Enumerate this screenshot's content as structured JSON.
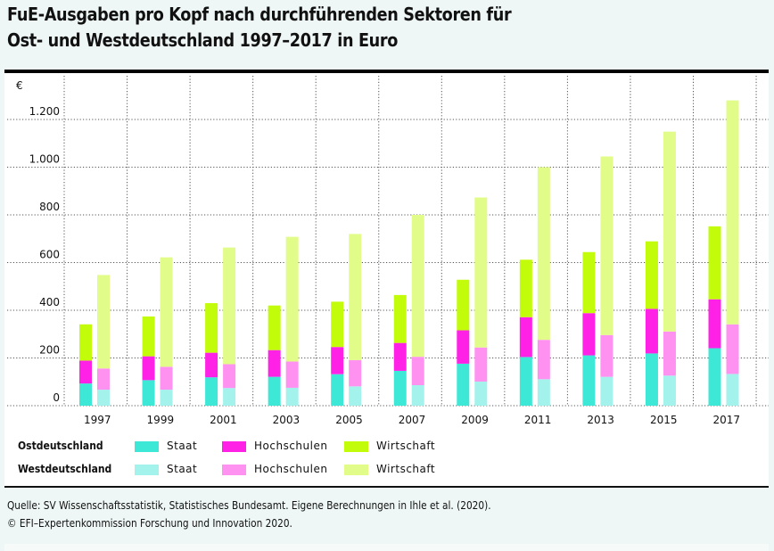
{
  "title_lines": [
    "FuE-Ausgaben pro Kopf nach durchführenden Sektoren für",
    "Ost- und Westdeutschland 1997–2017 in Euro"
  ],
  "chart_data": {
    "type": "bar",
    "stacked": true,
    "grouped": true,
    "title": "FuE-Ausgaben pro Kopf nach durchführenden Sektoren für Ost- und Westdeutschland 1997–2017 in Euro",
    "xlabel": "",
    "ylabel": "€",
    "ylim": [
      0,
      1300
    ],
    "yticks": [
      0,
      200,
      400,
      600,
      800,
      1000,
      1200
    ],
    "ytick_labels": [
      "0",
      "200",
      "400",
      "600",
      "800",
      "1.000",
      "1.200"
    ],
    "grid": true,
    "categories": [
      "1997",
      "1999",
      "2001",
      "2003",
      "2005",
      "2007",
      "2009",
      "2011",
      "2013",
      "2015",
      "2017"
    ],
    "groups": [
      {
        "name": "Ostdeutschland",
        "series": [
          {
            "name": "Staat",
            "color": "#3de8d6",
            "values": [
              93,
              107,
              119,
              121,
              132,
              146,
              176,
              204,
              211,
              219,
              241
            ]
          },
          {
            "name": "Hochschulen",
            "color": "#ff22e6",
            "values": [
              96,
              100,
              103,
              112,
              114,
              117,
              140,
              167,
              177,
              187,
              205
            ]
          },
          {
            "name": "Wirtschaft",
            "color": "#c2fc0a",
            "values": [
              152,
              167,
              208,
              187,
              190,
              201,
              212,
              241,
              256,
              283,
              306
            ]
          }
        ],
        "totals": [
          341,
          374,
          430,
          420,
          436,
          464,
          528,
          612,
          644,
          689,
          752
        ]
      },
      {
        "name": "Westdeutschland",
        "series": [
          {
            "name": "Staat",
            "color": "#a3f2ec",
            "values": [
              67,
              67,
              74,
              75,
              81,
              86,
              101,
              111,
              121,
              126,
              133
            ]
          },
          {
            "name": "Hochschulen",
            "color": "#ff92f0",
            "values": [
              89,
              96,
              100,
              110,
              110,
              119,
              143,
              165,
              175,
              185,
              208
            ]
          },
          {
            "name": "Wirtschaft",
            "color": "#e2fc8a",
            "values": [
              392,
              459,
              489,
              523,
              529,
              595,
              629,
              724,
              749,
              838,
              939
            ]
          }
        ],
        "totals": [
          548,
          622,
          663,
          708,
          720,
          800,
          873,
          1000,
          1045,
          1149,
          1280
        ]
      }
    ],
    "legend_position": "bottom-left"
  },
  "legend": {
    "rows": [
      {
        "region": "Ostdeutschland",
        "items": [
          {
            "label": "Staat",
            "color": "#3de8d6"
          },
          {
            "label": "Hochschulen",
            "color": "#ff22e6"
          },
          {
            "label": "Wirtschaft",
            "color": "#c2fc0a"
          }
        ]
      },
      {
        "region": "Westdeutschland",
        "items": [
          {
            "label": "Staat",
            "color": "#a3f2ec"
          },
          {
            "label": "Hochschulen",
            "color": "#ff92f0"
          },
          {
            "label": "Wirtschaft",
            "color": "#e2fc8a"
          }
        ]
      }
    ]
  },
  "footer": {
    "source": "Quelle: SV Wissenschaftsstatistik, Statistisches Bundesamt. Eigene Berechnungen in Ihle et al. (2020).",
    "copyright": "© EFI–Expertenkommission Forschung und Innovation 2020."
  }
}
